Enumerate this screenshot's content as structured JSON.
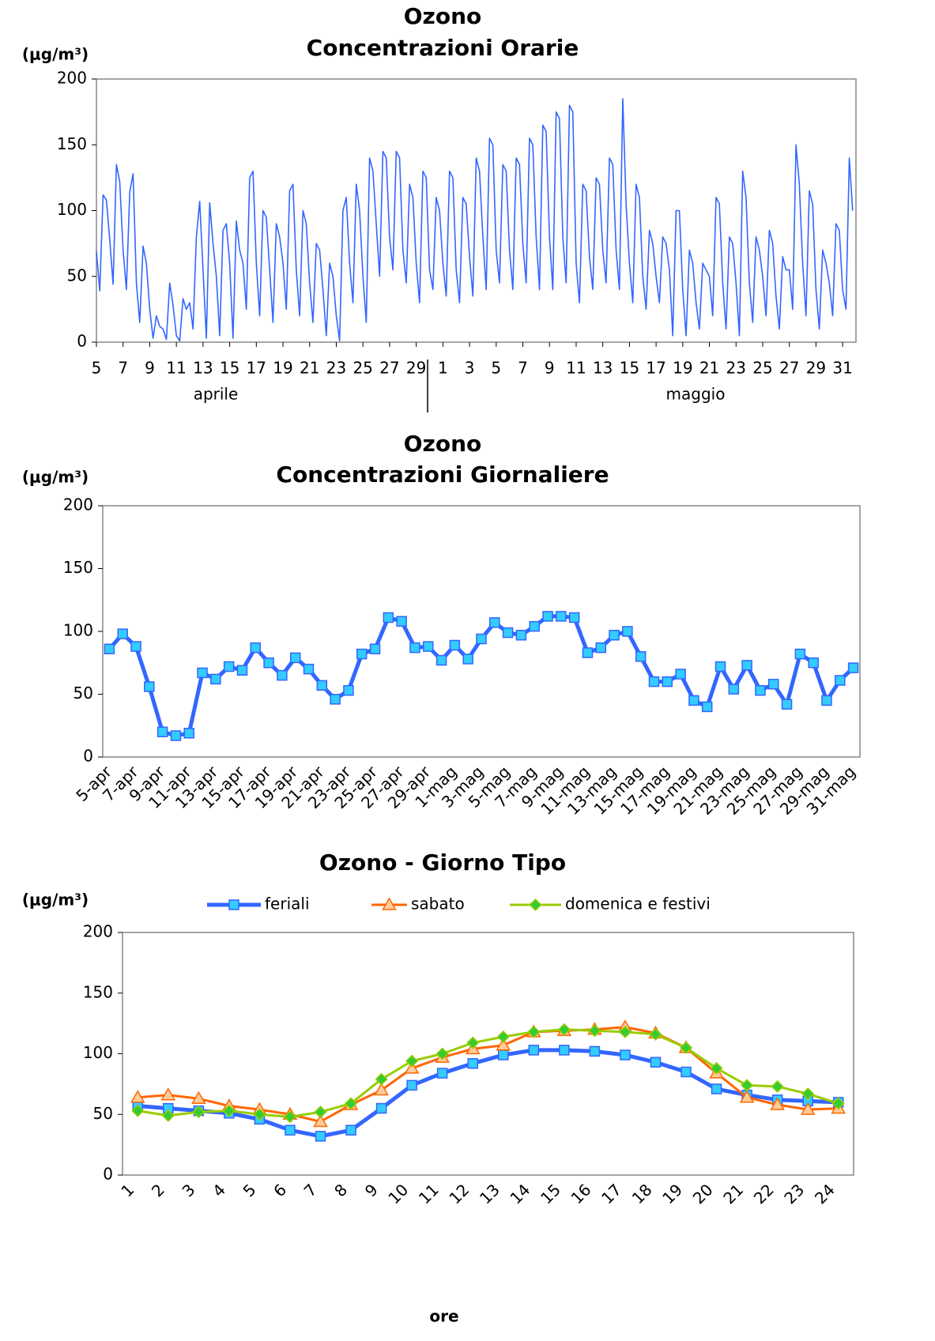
{
  "chart_data": [
    {
      "type": "line",
      "title": "Ozono",
      "subtitle": "Concentrazioni Orarie",
      "y_label": "(μg/m³)",
      "month_labels": [
        "aprile",
        "maggio"
      ],
      "xlim": [
        0,
        57
      ],
      "xticks": [
        {
          "value": 0,
          "label": "5"
        },
        {
          "value": 2,
          "label": "7"
        },
        {
          "value": 4,
          "label": "9"
        },
        {
          "value": 6,
          "label": "11"
        },
        {
          "value": 8,
          "label": "13"
        },
        {
          "value": 10,
          "label": "15"
        },
        {
          "value": 12,
          "label": "17"
        },
        {
          "value": 14,
          "label": "19"
        },
        {
          "value": 16,
          "label": "21"
        },
        {
          "value": 18,
          "label": "23"
        },
        {
          "value": 20,
          "label": "25"
        },
        {
          "value": 22,
          "label": "27"
        },
        {
          "value": 24,
          "label": "29"
        },
        {
          "value": 26,
          "label": "1"
        },
        {
          "value": 28,
          "label": "3"
        },
        {
          "value": 30,
          "label": "5"
        },
        {
          "value": 32,
          "label": "7"
        },
        {
          "value": 34,
          "label": "9"
        },
        {
          "value": 36,
          "label": "11"
        },
        {
          "value": 38,
          "label": "13"
        },
        {
          "value": 40,
          "label": "15"
        },
        {
          "value": 42,
          "label": "17"
        },
        {
          "value": 44,
          "label": "19"
        },
        {
          "value": 46,
          "label": "21"
        },
        {
          "value": 48,
          "label": "23"
        },
        {
          "value": 50,
          "label": "25"
        },
        {
          "value": 52,
          "label": "27"
        },
        {
          "value": 54,
          "label": "29"
        },
        {
          "value": 56,
          "label": "31"
        }
      ],
      "ylim": [
        0,
        200
      ],
      "yticks": [
        0,
        50,
        100,
        150,
        200
      ],
      "x": [
        0,
        0.25,
        0.5,
        0.75,
        1,
        1.25,
        1.5,
        1.75,
        2,
        2.25,
        2.5,
        2.75,
        3,
        3.25,
        3.5,
        3.75,
        4,
        4.25,
        4.5,
        4.75,
        5,
        5.25,
        5.5,
        5.75,
        6,
        6.25,
        6.5,
        6.75,
        7,
        7.25,
        7.5,
        7.75,
        8,
        8.25,
        8.5,
        8.75,
        9,
        9.25,
        9.5,
        9.75,
        10,
        10.25,
        10.5,
        10.75,
        11,
        11.25,
        11.5,
        11.75,
        12,
        12.25,
        12.5,
        12.75,
        13,
        13.25,
        13.5,
        13.75,
        14,
        14.25,
        14.5,
        14.75,
        15,
        15.25,
        15.5,
        15.75,
        16,
        16.25,
        16.5,
        16.75,
        17,
        17.25,
        17.5,
        17.75,
        18,
        18.25,
        18.5,
        18.75,
        19,
        19.25,
        19.5,
        19.75,
        20,
        20.25,
        20.5,
        20.75,
        21,
        21.25,
        21.5,
        21.75,
        22,
        22.25,
        22.5,
        22.75,
        23,
        23.25,
        23.5,
        23.75,
        24,
        24.25,
        24.5,
        24.75,
        25,
        25.25,
        25.5,
        25.75,
        26,
        26.25,
        26.5,
        26.75,
        27,
        27.25,
        27.5,
        27.75,
        28,
        28.25,
        28.5,
        28.75,
        29,
        29.25,
        29.5,
        29.75,
        30,
        30.25,
        30.5,
        30.75,
        31,
        31.25,
        31.5,
        31.75,
        32,
        32.25,
        32.5,
        32.75,
        33,
        33.25,
        33.5,
        33.75,
        34,
        34.25,
        34.5,
        34.75,
        35,
        35.25,
        35.5,
        35.75,
        36,
        36.25,
        36.5,
        36.75,
        37,
        37.25,
        37.5,
        37.75,
        38,
        38.25,
        38.5,
        38.75,
        39,
        39.25,
        39.5,
        39.75,
        40,
        40.25,
        40.5,
        40.75,
        41,
        41.25,
        41.5,
        41.75,
        42,
        42.25,
        42.5,
        42.75,
        43,
        43.25,
        43.5,
        43.75,
        44,
        44.25,
        44.5,
        44.75,
        45,
        45.25,
        45.5,
        45.75,
        46,
        46.25,
        46.5,
        46.75,
        47,
        47.25,
        47.5,
        47.75,
        48,
        48.25,
        48.5,
        48.75,
        49,
        49.25,
        49.5,
        49.75,
        50,
        50.25,
        50.5,
        50.75,
        51,
        51.25,
        51.5,
        51.75,
        52,
        52.25,
        52.5,
        52.75,
        53,
        53.25,
        53.5,
        53.75,
        54,
        54.25,
        54.5,
        54.75,
        55,
        55.25,
        55.5,
        55.75,
        56,
        56.25,
        56.5,
        56.75
      ],
      "series": [
        {
          "color": "#3366ff",
          "width": 1.6,
          "values": [
            69,
            39,
            112,
            108,
            78,
            44,
            135,
            122,
            70,
            40,
            114,
            128,
            45,
            15,
            73,
            60,
            25,
            3,
            20,
            12,
            10,
            2,
            45,
            28,
            5,
            1,
            33,
            25,
            30,
            10,
            80,
            107,
            55,
            3,
            106,
            75,
            50,
            5,
            85,
            90,
            60,
            3,
            92,
            70,
            60,
            25,
            125,
            130,
            60,
            20,
            100,
            95,
            55,
            15,
            90,
            80,
            60,
            25,
            115,
            120,
            55,
            20,
            100,
            90,
            45,
            15,
            75,
            70,
            40,
            5,
            60,
            50,
            20,
            1,
            100,
            110,
            60,
            30,
            120,
            100,
            50,
            15,
            140,
            130,
            90,
            50,
            145,
            140,
            80,
            55,
            145,
            140,
            70,
            45,
            120,
            110,
            60,
            30,
            130,
            125,
            55,
            40,
            110,
            100,
            60,
            35,
            130,
            125,
            55,
            30,
            110,
            105,
            65,
            35,
            140,
            130,
            80,
            40,
            155,
            150,
            70,
            45,
            135,
            130,
            70,
            40,
            140,
            135,
            75,
            45,
            155,
            150,
            80,
            40,
            165,
            160,
            80,
            40,
            175,
            170,
            80,
            45,
            180,
            175,
            60,
            30,
            120,
            115,
            65,
            40,
            125,
            120,
            70,
            45,
            140,
            135,
            70,
            40,
            185,
            105,
            60,
            30,
            120,
            110,
            50,
            25,
            85,
            75,
            50,
            30,
            80,
            75,
            55,
            5,
            100,
            100,
            40,
            5,
            70,
            60,
            30,
            10,
            60,
            55,
            50,
            20,
            110,
            105,
            45,
            10,
            80,
            75,
            45,
            5,
            130,
            110,
            45,
            15,
            80,
            70,
            50,
            20,
            85,
            75,
            35,
            10,
            65,
            55,
            55,
            25,
            150,
            120,
            60,
            20,
            115,
            105,
            40,
            10,
            70,
            60,
            45,
            20,
            90,
            85,
            40,
            25,
            140,
            100
          ]
        }
      ]
    },
    {
      "type": "line",
      "title": "Ozono",
      "subtitle": "Concentrazioni Giornaliere",
      "y_label": "(μg/m³)",
      "categories": [
        "5-apr",
        null,
        "7-apr",
        null,
        "9-apr",
        null,
        "11-apr",
        null,
        "13-apr",
        null,
        "15-apr",
        null,
        "17-apr",
        null,
        "19-apr",
        null,
        "21-apr",
        null,
        "23-apr",
        null,
        "25-apr",
        null,
        "27-apr",
        null,
        "29-apr",
        null,
        "1-mag",
        null,
        "3-mag",
        null,
        "5-mag",
        null,
        "7-mag",
        null,
        "9-mag",
        null,
        "11-mag",
        null,
        "13-mag",
        null,
        "15-mag",
        null,
        "17-mag",
        null,
        "19-mag",
        null,
        "21-mag",
        null,
        "23-mag",
        null,
        "25-mag",
        null,
        "27-mag",
        null,
        "29-mag",
        null,
        "31-mag"
      ],
      "ylim": [
        0,
        200
      ],
      "yticks": [
        0,
        50,
        100,
        150,
        200
      ],
      "series": [
        {
          "color": "#3366ff",
          "width": 5,
          "marker": "square",
          "marker_color": "#33ccff",
          "values": [
            86,
            98,
            88,
            56,
            20,
            17,
            19,
            67,
            62,
            72,
            69,
            87,
            75,
            65,
            79,
            70,
            57,
            46,
            53,
            82,
            86,
            111,
            108,
            87,
            88,
            77,
            89,
            78,
            94,
            107,
            99,
            97,
            104,
            112,
            112,
            111,
            83,
            87,
            97,
            100,
            80,
            60,
            60,
            66,
            45,
            40,
            72,
            54,
            73,
            53,
            58,
            42,
            82,
            75,
            45,
            61,
            71
          ]
        }
      ]
    },
    {
      "type": "line",
      "title": "Ozono - Giorno Tipo",
      "y_label": "(μg/m³)",
      "x_label": "ore",
      "legend": true,
      "categories": [
        "1",
        "2",
        "3",
        "4",
        "5",
        "6",
        "7",
        "8",
        "9",
        "10",
        "11",
        "12",
        "13",
        "14",
        "15",
        "16",
        "17",
        "18",
        "19",
        "20",
        "21",
        "22",
        "23",
        "24"
      ],
      "ylim": [
        0,
        200
      ],
      "yticks": [
        0,
        50,
        100,
        150,
        200
      ],
      "series": [
        {
          "name": "feriali",
          "color": "#3366ff",
          "width": 5,
          "marker": "square",
          "marker_color": "#33ccff",
          "values": [
            57,
            55,
            53,
            51,
            46,
            37,
            32,
            37,
            55,
            74,
            84,
            92,
            99,
            103,
            103,
            102,
            99,
            93,
            85,
            71,
            66,
            62,
            61,
            60
          ]
        },
        {
          "name": "sabato",
          "color": "#ff6600",
          "width": 3,
          "marker": "triangle",
          "marker_color": "#ffcc99",
          "values": [
            64,
            66,
            63,
            57,
            54,
            50,
            44,
            58,
            70,
            88,
            97,
            104,
            107,
            118,
            119,
            120,
            122,
            117,
            105,
            84,
            64,
            58,
            54,
            55
          ]
        },
        {
          "name": "domenica e festivi",
          "color": "#99cc00",
          "width": 3,
          "marker": "diamond",
          "marker_color": "#33cc33",
          "values": [
            53,
            49,
            52,
            53,
            50,
            48,
            52,
            59,
            79,
            94,
            100,
            109,
            114,
            118,
            120,
            119,
            118,
            116,
            105,
            88,
            74,
            73,
            67,
            59
          ]
        }
      ]
    }
  ]
}
